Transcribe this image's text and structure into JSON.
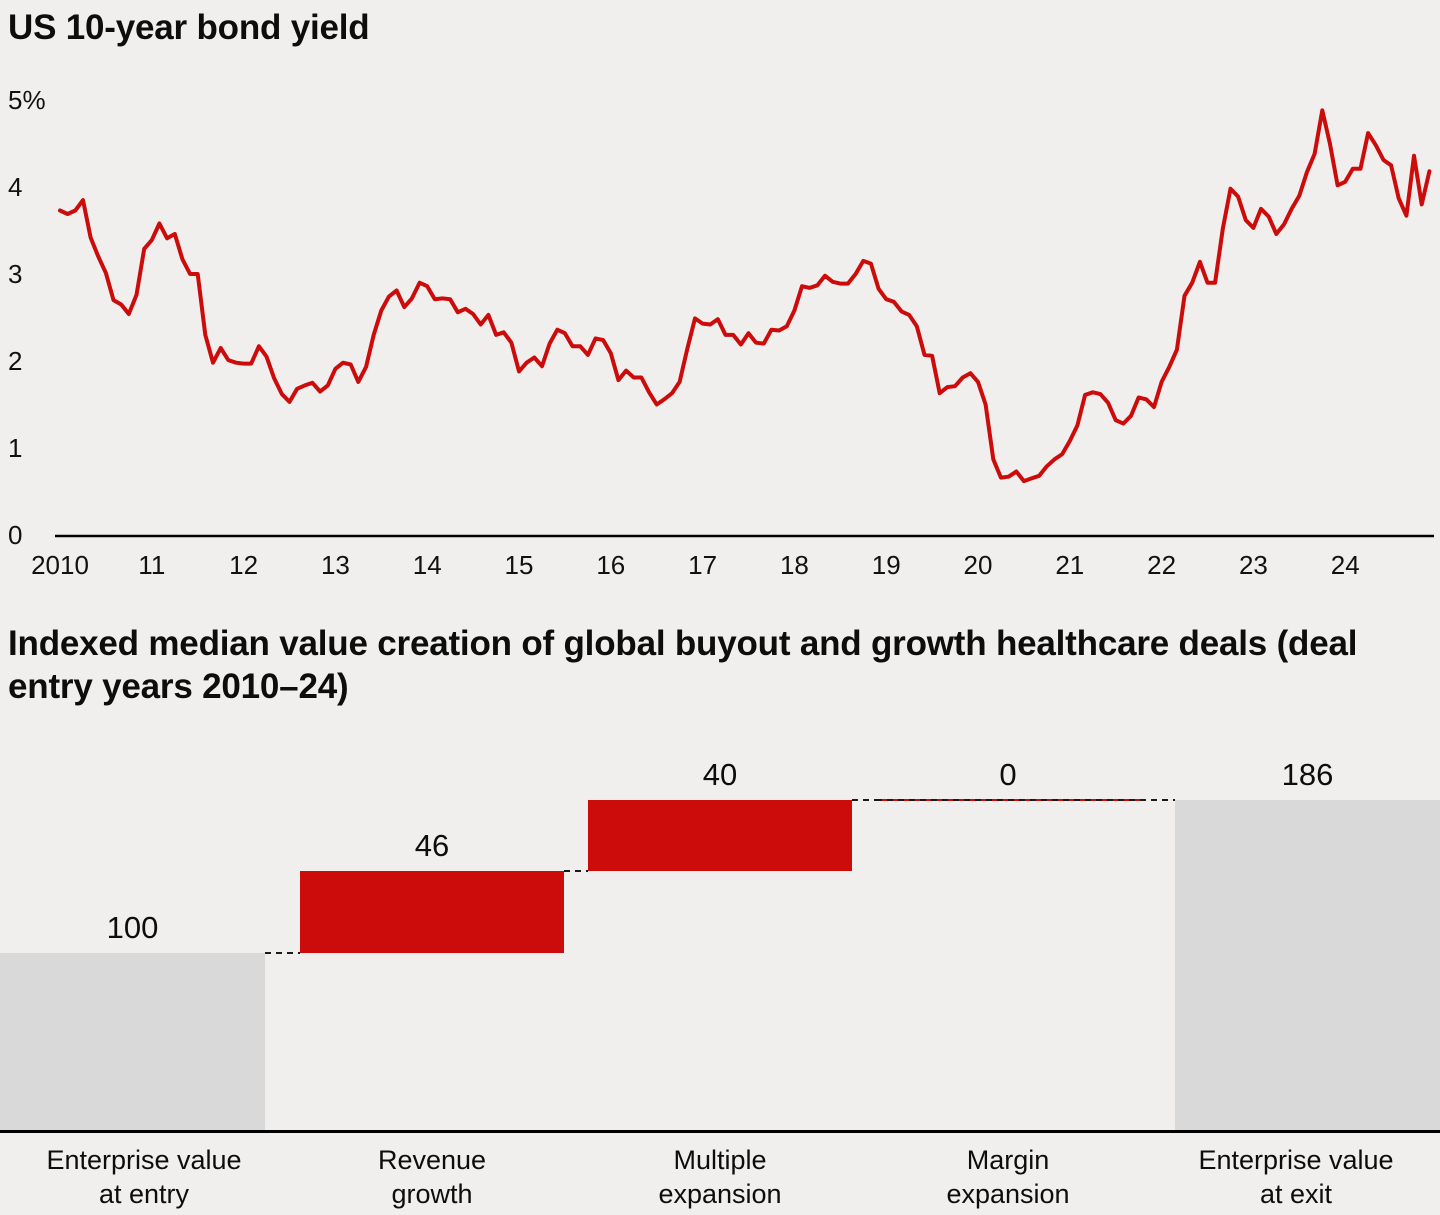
{
  "colors": {
    "accent_red": "#cc0b0b",
    "bar_gray": "#d9d9d9",
    "axis_black": "#000000",
    "background": "#f0efed"
  },
  "chart_data": [
    {
      "type": "line",
      "title": "US 10-year bond yield",
      "ylim": [
        0,
        5
      ],
      "y_ticks": [
        "5%",
        "4",
        "3",
        "2",
        "1",
        "0"
      ],
      "y_tick_values": [
        5,
        4,
        3,
        2,
        1,
        0
      ],
      "x_ticks": [
        "2010",
        "11",
        "12",
        "13",
        "14",
        "15",
        "16",
        "17",
        "18",
        "19",
        "20",
        "21",
        "22",
        "23",
        "24"
      ],
      "x_tick_years": [
        2010,
        2011,
        2012,
        2013,
        2014,
        2015,
        2016,
        2017,
        2018,
        2019,
        2020,
        2021,
        2022,
        2023,
        2024
      ],
      "x_start": 2010,
      "x_step": "monthly",
      "grid": false,
      "series": [
        {
          "name": "US 10-year bond yield",
          "color": "#cc0b0b",
          "values": [
            3.73,
            3.69,
            3.73,
            3.85,
            3.42,
            3.2,
            3.01,
            2.7,
            2.65,
            2.54,
            2.76,
            3.29,
            3.39,
            3.58,
            3.41,
            3.46,
            3.17,
            3.0,
            3.0,
            2.3,
            1.98,
            2.15,
            2.01,
            1.98,
            1.97,
            1.97,
            2.17,
            2.05,
            1.8,
            1.62,
            1.53,
            1.68,
            1.72,
            1.75,
            1.65,
            1.72,
            1.91,
            1.98,
            1.96,
            1.76,
            1.93,
            2.3,
            2.58,
            2.74,
            2.81,
            2.62,
            2.72,
            2.9,
            2.86,
            2.71,
            2.72,
            2.71,
            2.56,
            2.6,
            2.54,
            2.42,
            2.53,
            2.3,
            2.33,
            2.21,
            1.88,
            1.98,
            2.04,
            1.94,
            2.2,
            2.36,
            2.32,
            2.17,
            2.17,
            2.07,
            2.26,
            2.24,
            2.09,
            1.78,
            1.89,
            1.81,
            1.81,
            1.64,
            1.5,
            1.56,
            1.63,
            1.76,
            2.14,
            2.49,
            2.43,
            2.42,
            2.48,
            2.3,
            2.3,
            2.19,
            2.32,
            2.21,
            2.2,
            2.36,
            2.35,
            2.4,
            2.58,
            2.86,
            2.84,
            2.87,
            2.98,
            2.91,
            2.89,
            2.89,
            3.0,
            3.15,
            3.12,
            2.83,
            2.71,
            2.68,
            2.57,
            2.53,
            2.4,
            2.07,
            2.06,
            1.63,
            1.7,
            1.71,
            1.81,
            1.86,
            1.76,
            1.5,
            0.87,
            0.66,
            0.67,
            0.73,
            0.62,
            0.65,
            0.68,
            0.79,
            0.87,
            0.93,
            1.08,
            1.26,
            1.61,
            1.64,
            1.62,
            1.52,
            1.32,
            1.28,
            1.37,
            1.58,
            1.56,
            1.47,
            1.76,
            1.93,
            2.13,
            2.75,
            2.9,
            3.14,
            2.9,
            2.9,
            3.52,
            3.98,
            3.89,
            3.62,
            3.53,
            3.75,
            3.66,
            3.46,
            3.57,
            3.75,
            3.9,
            4.17,
            4.38,
            4.88,
            4.5,
            4.02,
            4.06,
            4.21,
            4.21,
            4.62,
            4.48,
            4.31,
            4.25,
            3.87,
            3.67,
            4.36,
            3.8,
            4.18
          ]
        }
      ]
    },
    {
      "type": "waterfall",
      "title": "Indexed median value creation of global buyout and growth healthcare deals (deal entry years 2010–24)",
      "categories": [
        [
          "Enterprise value",
          "at entry"
        ],
        [
          "Revenue",
          "growth"
        ],
        [
          "Multiple",
          "expansion"
        ],
        [
          "Margin",
          "expansion"
        ],
        [
          "Enterprise value",
          "at exit"
        ]
      ],
      "values": [
        100,
        46,
        40,
        0,
        186
      ],
      "value_labels": [
        "100",
        "46",
        "40",
        "0",
        "186"
      ],
      "bar_types": [
        "total",
        "increase",
        "increase",
        "increase",
        "total"
      ],
      "bar_colors": [
        "#d9d9d9",
        "#cc0b0b",
        "#cc0b0b",
        "#cc0b0b",
        "#d9d9d9"
      ],
      "ylim": [
        0,
        186
      ],
      "grid": false,
      "legend": "none"
    }
  ]
}
